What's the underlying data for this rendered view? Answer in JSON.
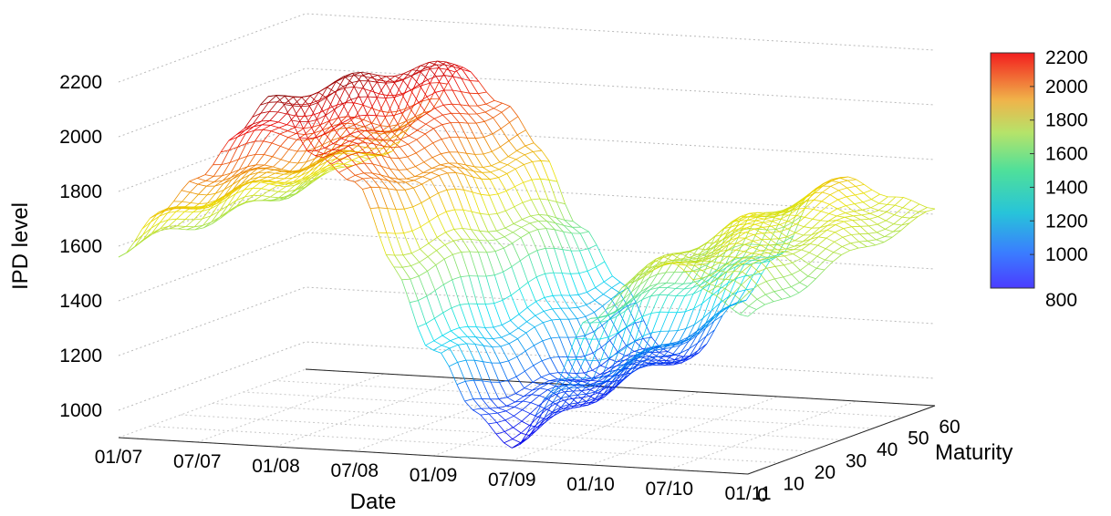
{
  "chart_data": {
    "type": "surface-3d-mesh",
    "title": "",
    "xlabel": "Date",
    "ylabel": "Maturity",
    "zlabel": "IPD level",
    "x_ticks": [
      "01/07",
      "07/07",
      "01/08",
      "07/08",
      "01/09",
      "07/09",
      "01/10",
      "07/10",
      "01/11"
    ],
    "y_ticks": [
      "0",
      "10",
      "20",
      "30",
      "40",
      "50",
      "60"
    ],
    "z_ticks": [
      "1000",
      "1200",
      "1400",
      "1600",
      "1800",
      "2000",
      "2200"
    ],
    "zlim": [
      900,
      2300
    ],
    "grid": true,
    "colorbar": {
      "ticks": [
        "800",
        "1000",
        "1200",
        "1400",
        "1600",
        "1800",
        "2000",
        "2200"
      ],
      "range": [
        800,
        2200
      ],
      "colormap": "jet"
    },
    "surface_profile": {
      "description_x": "date (01/07 to 01/11)",
      "x": [
        "01/07",
        "04/07",
        "07/07",
        "10/07",
        "01/08",
        "04/08",
        "07/08",
        "10/08",
        "01/09",
        "04/09",
        "07/09",
        "10/09",
        "01/10",
        "04/10",
        "07/10",
        "10/10",
        "01/11"
      ],
      "level_maturity_0": [
        1560,
        1720,
        1880,
        2020,
        2180,
        2000,
        1850,
        1600,
        1300,
        1040,
        980,
        1150,
        1420,
        1600,
        1640,
        1560,
        1480
      ],
      "level_maturity_60": [
        1600,
        1640,
        1700,
        1850,
        2050,
        1900,
        1750,
        1500,
        1250,
        1080,
        1050,
        1200,
        1450,
        1650,
        1700,
        1680,
        1600
      ]
    }
  }
}
